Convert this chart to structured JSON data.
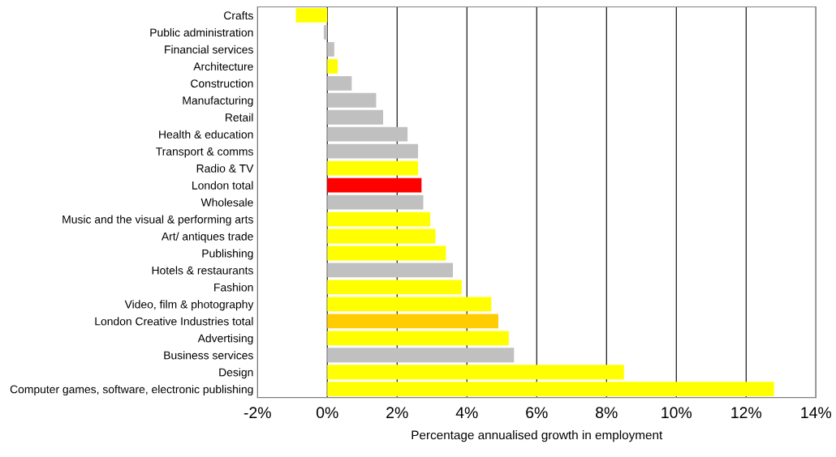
{
  "chart_data": {
    "type": "bar",
    "orientation": "horizontal",
    "xlabel": "Percentage annualised growth in employment",
    "categories": [
      "Crafts",
      "Public administration",
      "Financial services",
      "Architecture",
      "Construction",
      "Manufacturing",
      "Retail",
      "Health & education",
      "Transport & comms",
      "Radio & TV",
      "London total",
      "Wholesale",
      "Music and the visual & performing arts",
      "Art/ antiques trade",
      "Publishing",
      "Hotels & restaurants",
      "Fashion",
      "Video, film & photography",
      "London Creative Industries total",
      "Advertising",
      "Business services",
      "Design",
      "Computer games, software, electronic publishing"
    ],
    "values": [
      -0.9,
      -0.1,
      0.2,
      0.3,
      0.7,
      1.4,
      1.6,
      2.3,
      2.6,
      2.6,
      2.7,
      2.75,
      2.95,
      3.1,
      3.4,
      3.6,
      3.85,
      4.7,
      4.9,
      5.2,
      5.35,
      8.5,
      12.8
    ],
    "colors": [
      "#ffff00",
      "#c0c0c0",
      "#c0c0c0",
      "#ffff00",
      "#c0c0c0",
      "#c0c0c0",
      "#c0c0c0",
      "#c0c0c0",
      "#c0c0c0",
      "#ffff00",
      "#ff0000",
      "#c0c0c0",
      "#ffff00",
      "#ffff00",
      "#ffff00",
      "#c0c0c0",
      "#ffff00",
      "#ffff00",
      "#ffcc00",
      "#ffff00",
      "#c0c0c0",
      "#ffff00",
      "#ffff00"
    ],
    "xlim": [
      -2,
      14
    ],
    "xticks": [
      {
        "value": -2,
        "label": "-2%"
      },
      {
        "value": 0,
        "label": "0%"
      },
      {
        "value": 2,
        "label": "2%"
      },
      {
        "value": 4,
        "label": "4%"
      },
      {
        "value": 6,
        "label": "6%"
      },
      {
        "value": 8,
        "label": "8%"
      },
      {
        "value": 10,
        "label": "10%"
      },
      {
        "value": 12,
        "label": "12%"
      },
      {
        "value": 14,
        "label": "14%"
      }
    ],
    "grid": "x",
    "legend": false
  }
}
